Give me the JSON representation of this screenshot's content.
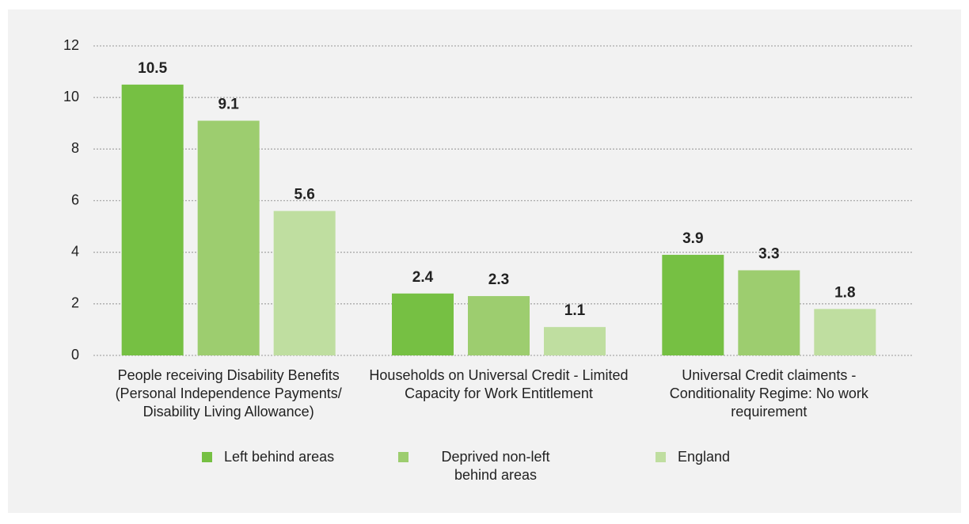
{
  "chart_data": {
    "type": "bar",
    "categories": [
      "People receiving Disability Benefits (Personal Independence Payments/ Disability Living Allowance)",
      "Households on Universal Credit - Limited Capacity for Work Entitlement",
      "Universal Credit claiments - Conditionality Regime: No work requirement"
    ],
    "series": [
      {
        "name": "Left behind areas",
        "color": "#76c043",
        "values": [
          10.5,
          2.4,
          3.9
        ]
      },
      {
        "name": "Deprived non-left behind areas",
        "color": "#9dcd6f",
        "values": [
          9.1,
          2.3,
          3.3
        ]
      },
      {
        "name": "England",
        "color": "#bfdea0",
        "values": [
          5.6,
          1.1,
          1.8
        ]
      }
    ],
    "ylim": [
      0,
      12
    ],
    "yticks": [
      0,
      2,
      4,
      6,
      8,
      10,
      12
    ],
    "grid": true,
    "legend": "bottom"
  }
}
